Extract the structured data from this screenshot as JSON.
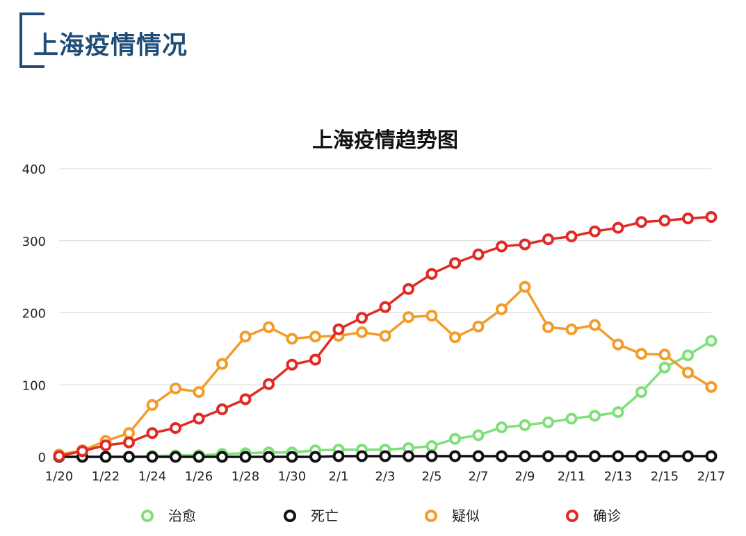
{
  "header": {
    "title": "上海疫情情况"
  },
  "chart_data": {
    "type": "line",
    "title": "上海疫情趋势图",
    "xlabel": "",
    "ylabel": "",
    "ylim": [
      0,
      400
    ],
    "yticks": [
      "0",
      "100",
      "200",
      "300",
      "400"
    ],
    "grid": true,
    "legend_position": "bottom",
    "x": [
      "1/20",
      "1/21",
      "1/22",
      "1/23",
      "1/24",
      "1/25",
      "1/26",
      "1/27",
      "1/28",
      "1/29",
      "1/30",
      "1/31",
      "2/1",
      "2/2",
      "2/3",
      "2/4",
      "2/5",
      "2/6",
      "2/7",
      "2/8",
      "2/9",
      "2/10",
      "2/11",
      "2/12",
      "2/13",
      "2/14",
      "2/15",
      "2/16",
      "2/17"
    ],
    "xtick_labels": [
      "1/20",
      "1/22",
      "1/24",
      "1/26",
      "1/28",
      "1/30",
      "2/1",
      "2/3",
      "2/5",
      "2/7",
      "2/9",
      "2/11",
      "2/13",
      "2/15",
      "2/17"
    ],
    "series": [
      {
        "name": "治愈",
        "color": "#7fe07a",
        "values": [
          0,
          0,
          0,
          0,
          1,
          2,
          2,
          4,
          5,
          6,
          6,
          9,
          10,
          10,
          10,
          12,
          15,
          25,
          30,
          41,
          44,
          48,
          53,
          57,
          62,
          90,
          124,
          141,
          161
        ]
      },
      {
        "name": "死亡",
        "color": "#111111",
        "values": [
          0,
          0,
          0,
          0,
          0,
          0,
          0,
          0,
          0,
          0,
          0,
          0,
          1,
          1,
          1,
          1,
          1,
          1,
          1,
          1,
          1,
          1,
          1,
          1,
          1,
          1,
          1,
          1,
          1
        ]
      },
      {
        "name": "疑似",
        "color": "#f39c2a",
        "values": [
          3,
          9,
          22,
          33,
          72,
          95,
          90,
          129,
          167,
          180,
          164,
          167,
          168,
          173,
          168,
          194,
          196,
          166,
          181,
          205,
          236,
          180,
          177,
          183,
          156,
          143,
          142,
          117,
          97
        ]
      },
      {
        "name": "确诊",
        "color": "#e02b25",
        "values": [
          1,
          8,
          16,
          20,
          33,
          40,
          53,
          66,
          80,
          101,
          128,
          135,
          177,
          193,
          208,
          233,
          254,
          269,
          281,
          292,
          295,
          302,
          306,
          313,
          318,
          326,
          328,
          331,
          333
        ]
      }
    ]
  }
}
